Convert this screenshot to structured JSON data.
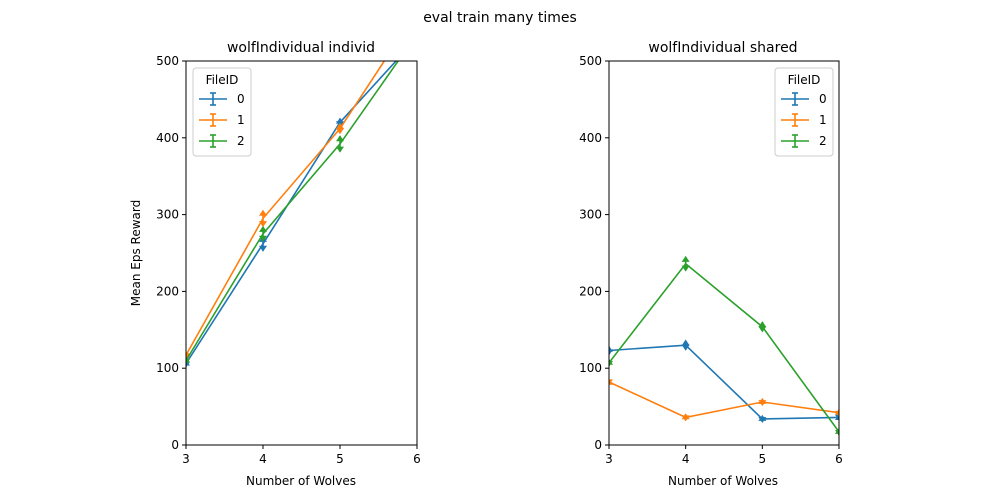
{
  "figure": {
    "suptitle": "eval train many times"
  },
  "colors": {
    "0": "#1f77b4",
    "1": "#ff7f0e",
    "2": "#2ca02c"
  },
  "chart_data": [
    {
      "type": "line",
      "title": "wolfIndividual individ",
      "xlabel": "Number of Wolves",
      "ylabel": "Mean Eps Reward",
      "xlim": [
        3,
        6
      ],
      "ylim": [
        0,
        500
      ],
      "xticks": [
        "3",
        "4",
        "5",
        "6"
      ],
      "yticks": [
        "0",
        "100",
        "200",
        "300",
        "400",
        "500"
      ],
      "legend": {
        "title": "FileID",
        "position": "top-left"
      },
      "series": [
        {
          "name": "0",
          "x": [
            3,
            4,
            5,
            6
          ],
          "y": [
            106,
            262,
            420,
            530
          ],
          "err": [
            4,
            9,
            5,
            4
          ]
        },
        {
          "name": "1",
          "x": [
            3,
            4,
            5,
            6
          ],
          "y": [
            117,
            295,
            412,
            565
          ],
          "err": [
            4,
            10,
            6,
            4
          ]
        },
        {
          "name": "2",
          "x": [
            3,
            4,
            5,
            6
          ],
          "y": [
            110,
            275,
            392,
            535
          ],
          "err": [
            4,
            9,
            10,
            4
          ]
        }
      ]
    },
    {
      "type": "line",
      "title": "wolfIndividual shared",
      "xlabel": "Number of Wolves",
      "ylabel": "",
      "xlim": [
        3,
        6
      ],
      "ylim": [
        0,
        500
      ],
      "xticks": [
        "3",
        "4",
        "5",
        "6"
      ],
      "yticks": [
        "0",
        "100",
        "200",
        "300",
        "400",
        "500"
      ],
      "legend": {
        "title": "FileID",
        "position": "top-right"
      },
      "series": [
        {
          "name": "0",
          "x": [
            3,
            4,
            5,
            6
          ],
          "y": [
            123,
            130,
            34,
            36
          ],
          "err": [
            5,
            6,
            4,
            3
          ]
        },
        {
          "name": "1",
          "x": [
            3,
            4,
            5,
            6
          ],
          "y": [
            82,
            36,
            56,
            42
          ],
          "err": [
            3,
            4,
            4,
            4
          ]
        },
        {
          "name": "2",
          "x": [
            3,
            4,
            5,
            6
          ],
          "y": [
            107,
            236,
            154,
            17
          ],
          "err": [
            4,
            9,
            6,
            4
          ]
        }
      ]
    }
  ]
}
